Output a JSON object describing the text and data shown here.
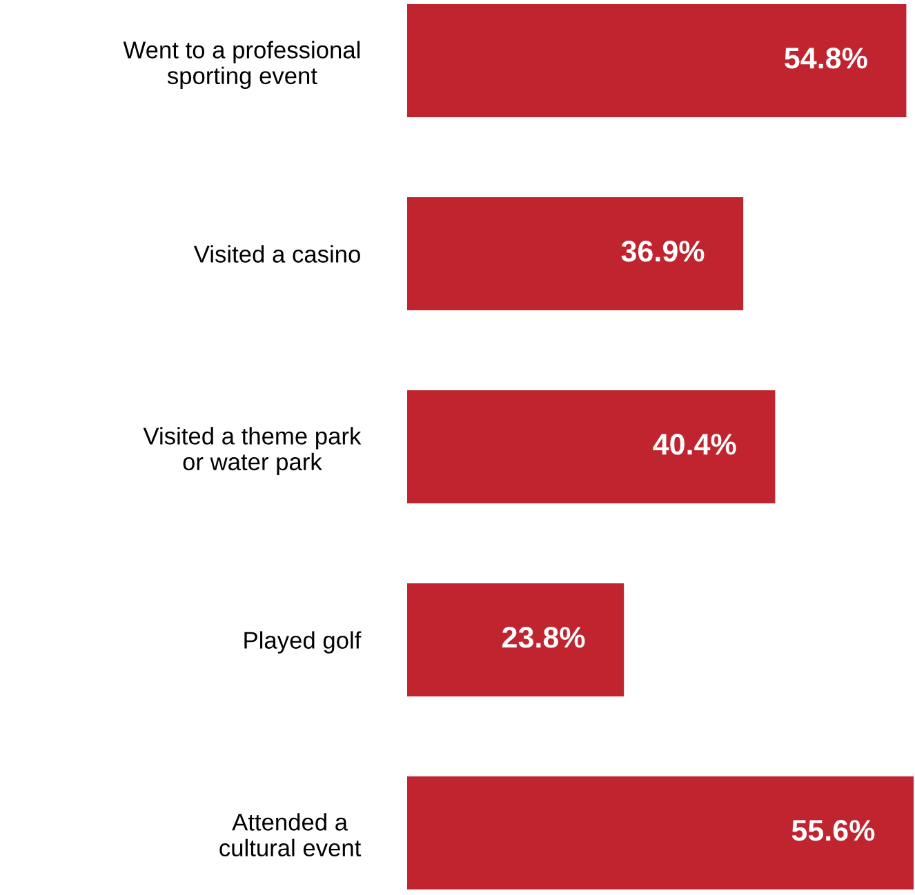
{
  "chart_data": {
    "type": "bar",
    "orientation": "horizontal",
    "categories": [
      "Went to a professional\nsporting event",
      "Visited a casino",
      "Visited a theme park\nor water park",
      "Played golf",
      "Attended a\ncultural event"
    ],
    "values": [
      54.8,
      36.9,
      40.4,
      23.8,
      55.6
    ],
    "value_labels": [
      "54.8%",
      "36.9%",
      "40.4%",
      "23.8%",
      "55.6%"
    ],
    "color": "#c0242f",
    "tick_labels": "y"
  }
}
